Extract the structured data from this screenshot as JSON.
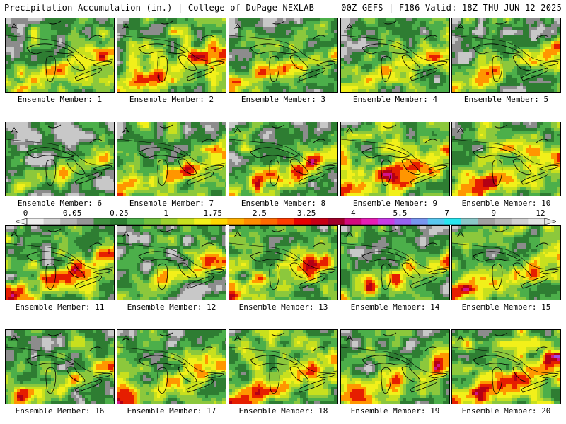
{
  "header": {
    "title": "Precipitation Accumulation (in.) | College of DuPage NEXLAB",
    "run_info": "00Z GEFS | F186 Valid: 18Z THU JUN 12 2025"
  },
  "panels": [
    {
      "label": "Ensemble Member: 1",
      "seed": 11,
      "bias": 0.15
    },
    {
      "label": "Ensemble Member: 2",
      "seed": 27,
      "bias": 0.25
    },
    {
      "label": "Ensemble Member: 3",
      "seed": 39,
      "bias": 0.05
    },
    {
      "label": "Ensemble Member: 4",
      "seed": 48,
      "bias": 0.1
    },
    {
      "label": "Ensemble Member: 5",
      "seed": 53,
      "bias": 0.0
    },
    {
      "label": "Ensemble Member: 6",
      "seed": 61,
      "bias": -0.15
    },
    {
      "label": "Ensemble Member: 7",
      "seed": 72,
      "bias": 0.2
    },
    {
      "label": "Ensemble Member: 8",
      "seed": 85,
      "bias": 0.1
    },
    {
      "label": "Ensemble Member: 9",
      "seed": 94,
      "bias": 0.3
    },
    {
      "label": "Ensemble Member: 10",
      "seed": 102,
      "bias": 0.3
    },
    {
      "label": "Ensemble Member: 11",
      "seed": 117,
      "bias": 0.15
    },
    {
      "label": "Ensemble Member: 12",
      "seed": 126,
      "bias": -0.05
    },
    {
      "label": "Ensemble Member: 13",
      "seed": 138,
      "bias": 0.2
    },
    {
      "label": "Ensemble Member: 14",
      "seed": 145,
      "bias": 0.05
    },
    {
      "label": "Ensemble Member: 15",
      "seed": 159,
      "bias": 0.15
    },
    {
      "label": "Ensemble Member: 16",
      "seed": 163,
      "bias": 0.05
    },
    {
      "label": "Ensemble Member: 17",
      "seed": 177,
      "bias": 0.15
    },
    {
      "label": "Ensemble Member: 18",
      "seed": 184,
      "bias": 0.2
    },
    {
      "label": "Ensemble Member: 19",
      "seed": 196,
      "bias": 0.1
    },
    {
      "label": "Ensemble Member: 20",
      "seed": 205,
      "bias": 0.35
    }
  ],
  "colorbar": {
    "tick_labels": [
      "0",
      "0.05",
      "0.25",
      "1",
      "1.75",
      "2.5",
      "3.25",
      "4",
      "5.5",
      "7",
      "9",
      "12"
    ],
    "colors": [
      "#f0f0f0",
      "#d2d2d2",
      "#b4b4b4",
      "#969696",
      "#3f8f3f",
      "#2e7d32",
      "#4caf4a",
      "#72c03c",
      "#9ed12e",
      "#c8e01e",
      "#f2f01a",
      "#ffd700",
      "#ffb000",
      "#ff8c00",
      "#ff6a00",
      "#ff3c00",
      "#e60000",
      "#c80014",
      "#a0002a",
      "#d20a7d",
      "#e61eb4",
      "#c83ce6",
      "#9664f0",
      "#7896f0",
      "#5ac8f0",
      "#28e6f0",
      "#8cc8c8",
      "#a0a0a0",
      "#b9b9b9",
      "#d2d2d2",
      "#e6e6e6"
    ]
  },
  "palette": {
    "light_gray": "#c8c8c8",
    "gray": "#8c8c8c",
    "dark_green": "#2e7d32",
    "green": "#4caf4a",
    "light_green": "#8cc83c",
    "yellow_green": "#c8e01e",
    "yellow": "#f2f01a",
    "orange": "#ff9600",
    "red": "#e61e00",
    "dark_red": "#b40014",
    "magenta": "#d2148c",
    "purple": "#a050e6"
  }
}
